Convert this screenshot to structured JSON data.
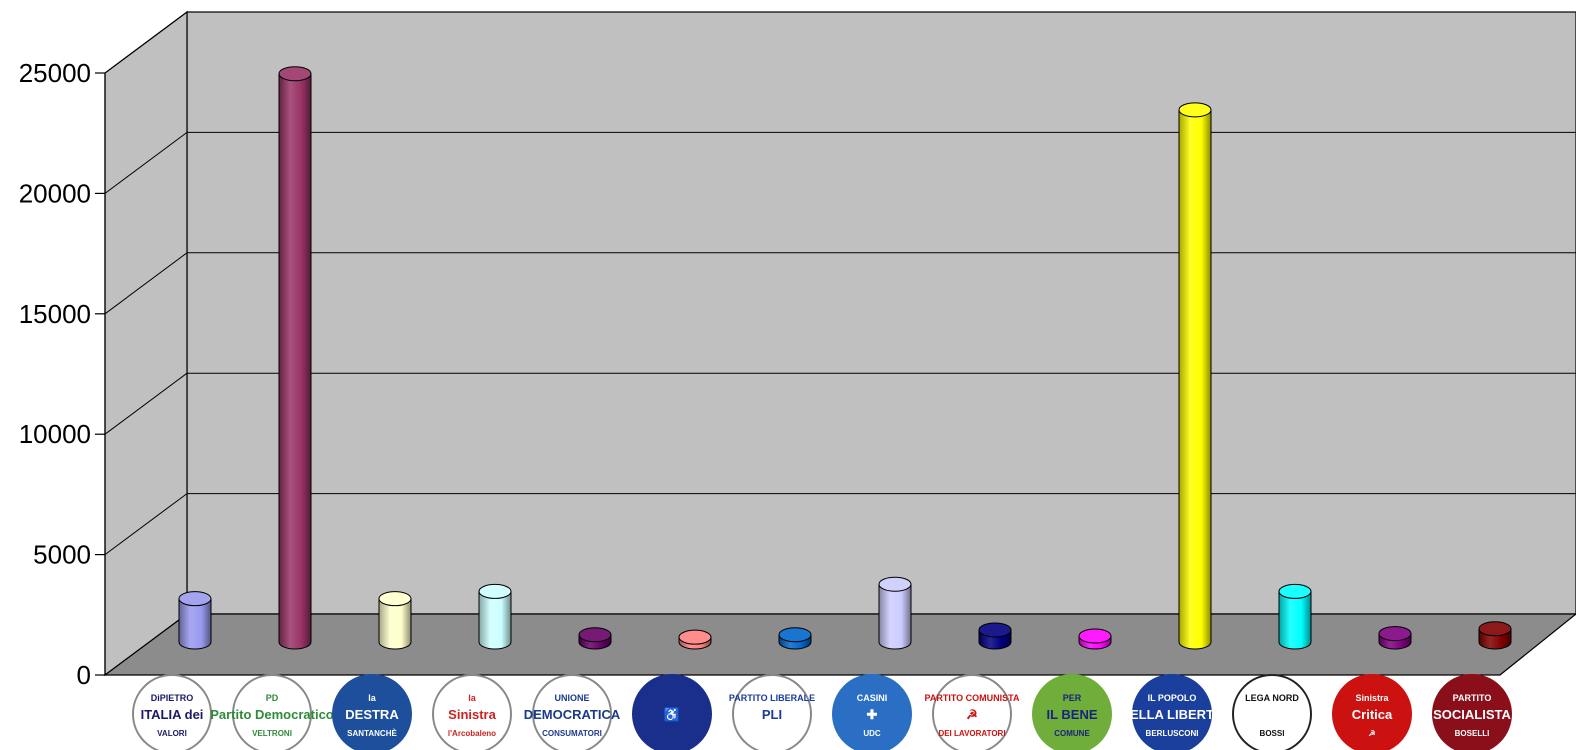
{
  "chart_data": {
    "type": "bar",
    "style": "3d-cylinder",
    "ylim": [
      0,
      25000
    ],
    "yticks": [
      "0",
      "5000",
      "10000",
      "15000",
      "20000",
      "25000"
    ],
    "grid": true,
    "legend": "none",
    "categories": [
      "Di Pietro Italia dei Valori",
      "Partito Democratico Veltroni",
      "La Destra Santanchè",
      "La Sinistra l'Arcobaleno",
      "Unione Democratica per i Consumatori",
      "Lista dei disabili",
      "Partito Liberale Italiano",
      "Casini UDC",
      "Partito Comunista dei Lavoratori",
      "Per il Bene Comune",
      "Il Popolo della Libertà Berlusconi",
      "Lega Nord Bossi",
      "Sinistra Critica",
      "Partito Socialista Boselli"
    ],
    "values": [
      1800,
      23600,
      1800,
      2100,
      300,
      200,
      300,
      2400,
      500,
      250,
      22100,
      2100,
      350,
      550
    ],
    "colors": [
      "#9999ee",
      "#993366",
      "#ffffcc",
      "#ccffff",
      "#660066",
      "#ff8080",
      "#0066cc",
      "#ccccff",
      "#000080",
      "#ff00ff",
      "#ffff00",
      "#00ffff",
      "#800080",
      "#800000"
    ],
    "logos": [
      {
        "lines": [
          "DiPIETRO",
          "ITALIA dei",
          "VALORI"
        ],
        "bg": "#ffffff",
        "fg": "#1a1a66",
        "ring": "#888888"
      },
      {
        "lines": [
          "PD",
          "Partito Democratico",
          "VELTRONI"
        ],
        "bg": "#ffffff",
        "fg": "#2e8b3a",
        "ring": "#888888"
      },
      {
        "lines": [
          "la",
          "DESTRA",
          "SANTANCHÈ"
        ],
        "bg": "#1e4f9c",
        "fg": "#ffffff",
        "ring": "#1e4f9c"
      },
      {
        "lines": [
          "la",
          "Sinistra",
          "l'Arcobaleno"
        ],
        "bg": "#ffffff",
        "fg": "#cc2222",
        "ring": "#888888"
      },
      {
        "lines": [
          "UNIONE",
          "DEMOCRATICA",
          "CONSUMATORI"
        ],
        "bg": "#ffffff",
        "fg": "#1a3a8c",
        "ring": "#888888"
      },
      {
        "lines": [
          "",
          "♿",
          ""
        ],
        "bg": "#1a2f8c",
        "fg": "#ffffff",
        "ring": "#1a2f8c"
      },
      {
        "lines": [
          "PARTITO LIBERALE",
          "PLI",
          ""
        ],
        "bg": "#ffffff",
        "fg": "#1a3a9c",
        "ring": "#888888"
      },
      {
        "lines": [
          "CASINI",
          "✚",
          "UDC"
        ],
        "bg": "#2a6fc4",
        "fg": "#ffffff",
        "ring": "#2a6fc4"
      },
      {
        "lines": [
          "PARTITO COMUNISTA",
          "☭",
          "DEI LAVORATORI"
        ],
        "bg": "#ffffff",
        "fg": "#cc1111",
        "ring": "#888888"
      },
      {
        "lines": [
          "PER",
          "IL BENE",
          "COMUNE"
        ],
        "bg": "#6fae3a",
        "fg": "#1a237e",
        "ring": "#6fae3a"
      },
      {
        "lines": [
          "IL POPOLO",
          "DELLA LIBERTÀ",
          "BERLUSCONI"
        ],
        "bg": "#1a3f9c",
        "fg": "#ffffff",
        "ring": "#1a3f9c"
      },
      {
        "lines": [
          "LEGA NORD",
          "",
          "BOSSI"
        ],
        "bg": "#ffffff",
        "fg": "#111111",
        "ring": "#222222"
      },
      {
        "lines": [
          "Sinistra",
          "Critica",
          "☭"
        ],
        "bg": "#cc1111",
        "fg": "#ffffff",
        "ring": "#cc1111"
      },
      {
        "lines": [
          "PARTITO",
          "SOCIALISTA",
          "BOSELLI"
        ],
        "bg": "#8b0f1a",
        "fg": "#ffffff",
        "ring": "#8b0f1a"
      }
    ]
  }
}
